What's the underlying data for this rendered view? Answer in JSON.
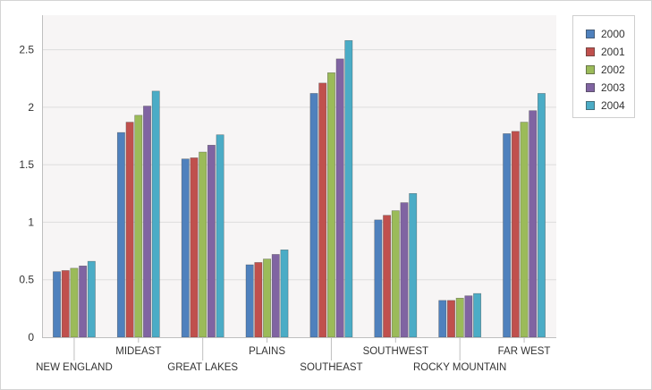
{
  "chart_data": {
    "type": "bar",
    "title": "",
    "xlabel": "",
    "ylabel": "",
    "categories": [
      "NEW ENGLAND",
      "MIDEAST",
      "GREAT LAKES",
      "PLAINS",
      "SOUTHEAST",
      "SOUTHWEST",
      "ROCKY MOUNTAIN",
      "FAR WEST"
    ],
    "series": [
      {
        "name": "2000",
        "color": "#4f81bd",
        "values": [
          0.57,
          1.78,
          1.55,
          0.63,
          2.12,
          1.02,
          0.32,
          1.77
        ]
      },
      {
        "name": "2001",
        "color": "#c0504d",
        "values": [
          0.58,
          1.87,
          1.56,
          0.65,
          2.21,
          1.06,
          0.32,
          1.79
        ]
      },
      {
        "name": "2002",
        "color": "#9bbb59",
        "values": [
          0.6,
          1.93,
          1.61,
          0.68,
          2.3,
          1.1,
          0.34,
          1.87
        ]
      },
      {
        "name": "2003",
        "color": "#8064a2",
        "values": [
          0.62,
          2.01,
          1.67,
          0.72,
          2.42,
          1.17,
          0.36,
          1.97
        ]
      },
      {
        "name": "2004",
        "color": "#4bacc6",
        "values": [
          0.66,
          2.14,
          1.76,
          0.76,
          2.58,
          1.25,
          0.38,
          2.12
        ]
      }
    ],
    "ylim": [
      0,
      2.8
    ],
    "yticks": [
      0,
      0.5,
      1,
      1.5,
      2,
      2.5
    ],
    "ytick_labels": [
      "0",
      "0.5",
      "1",
      "1.5",
      "2",
      "2.5"
    ],
    "grid": true,
    "legend_position": "top-right",
    "plot_background": "#f7f5f5",
    "grid_color": "#dddddd"
  }
}
